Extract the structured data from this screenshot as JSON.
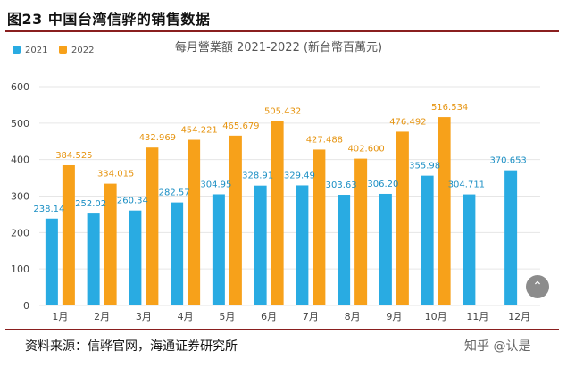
{
  "figure_title": "图23 中国台湾信骅的销售数据",
  "source_note": "资料来源：信骅官网，海通证券研究所",
  "watermark": "知乎 @认是",
  "colors": {
    "series_2021": "#29abe2",
    "series_2022": "#f7a11a",
    "grid": "#e6e6e6",
    "title_rule": "#8a1f1f"
  },
  "icons": {
    "scroll_up": "chevron-up-icon"
  },
  "chart_data": {
    "type": "bar",
    "title": "每月營業額 2021-2022 (新台幣百萬元)",
    "categories": [
      "1月",
      "2月",
      "3月",
      "4月",
      "5月",
      "6月",
      "7月",
      "8月",
      "9月",
      "10月",
      "11月",
      "12月"
    ],
    "ylim": [
      0,
      600
    ],
    "yticks": [
      0,
      100,
      200,
      300,
      400,
      500,
      600
    ],
    "grid": true,
    "legend_position": "top-left",
    "series": [
      {
        "name": "2021",
        "values": [
          238.14,
          252.02,
          260.34,
          282.57,
          304.95,
          328.91,
          329.49,
          303.63,
          306.2,
          355.98,
          304.711,
          370.653
        ],
        "labels": [
          "238.14",
          "252.02",
          "260.34",
          "282.57",
          "304.95",
          "328.91",
          "329.49",
          "303.63",
          "306.20",
          "355.98",
          "304.711",
          "370.653"
        ]
      },
      {
        "name": "2022",
        "values": [
          384.525,
          334.015,
          432.969,
          454.221,
          465.679,
          505.432,
          427.488,
          402.6,
          476.492,
          516.534,
          null,
          null
        ],
        "labels": [
          "384.525",
          "334.015",
          "432.969",
          "454.221",
          "465.679",
          "505.432",
          "427.488",
          "402.600",
          "476.492",
          "516.534",
          "",
          ""
        ]
      }
    ]
  }
}
